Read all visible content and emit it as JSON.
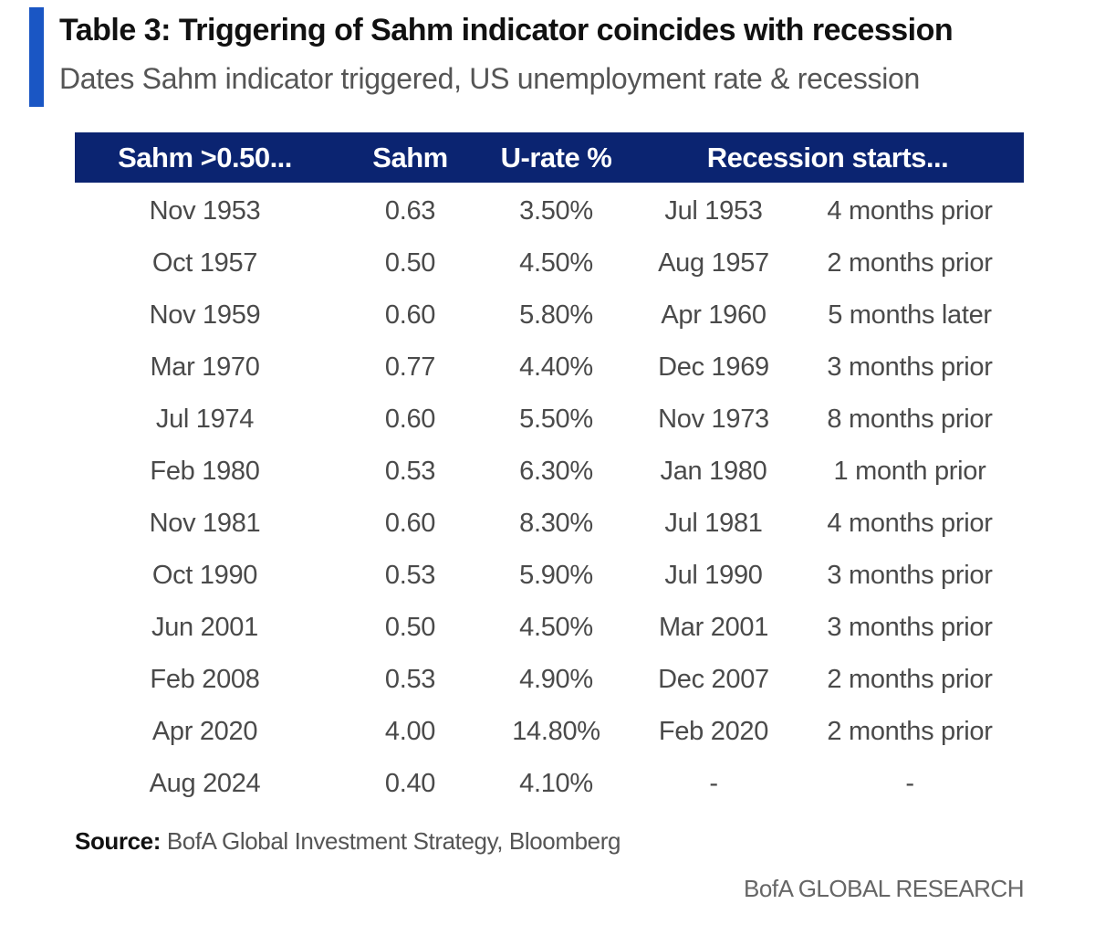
{
  "header": {
    "title": "Table 3: Triggering of Sahm indicator coincides with recession",
    "subtitle": "Dates Sahm indicator triggered, US unemployment rate & recession",
    "accent_color": "#1a56c4"
  },
  "table": {
    "header_color": "#0b2471",
    "columns": [
      "Sahm >0.50...",
      "Sahm",
      "U-rate %",
      "Recession starts..."
    ],
    "rows": [
      [
        "Nov 1953",
        "0.63",
        "3.50%",
        "Jul 1953",
        "4 months prior"
      ],
      [
        "Oct 1957",
        "0.50",
        "4.50%",
        "Aug 1957",
        "2 months prior"
      ],
      [
        "Nov 1959",
        "0.60",
        "5.80%",
        "Apr 1960",
        "5 months later"
      ],
      [
        "Mar 1970",
        "0.77",
        "4.40%",
        "Dec 1969",
        "3 months prior"
      ],
      [
        "Jul 1974",
        "0.60",
        "5.50%",
        "Nov 1973",
        "8 months prior"
      ],
      [
        "Feb 1980",
        "0.53",
        "6.30%",
        "Jan 1980",
        "1 month prior"
      ],
      [
        "Nov 1981",
        "0.60",
        "8.30%",
        "Jul 1981",
        "4 months prior"
      ],
      [
        "Oct 1990",
        "0.53",
        "5.90%",
        "Jul 1990",
        "3 months prior"
      ],
      [
        "Jun 2001",
        "0.50",
        "4.50%",
        "Mar 2001",
        "3 months prior"
      ],
      [
        "Feb 2008",
        "0.53",
        "4.90%",
        "Dec 2007",
        "2 months prior"
      ],
      [
        "Apr 2020",
        "4.00",
        "14.80%",
        "Feb 2020",
        "2 months prior"
      ],
      [
        "Aug 2024",
        "0.40",
        "4.10%",
        "-",
        "-"
      ]
    ]
  },
  "footer": {
    "source_label": "Source:",
    "source_text": " BofA Global Investment Strategy, Bloomberg",
    "brand": "BofA GLOBAL RESEARCH"
  }
}
